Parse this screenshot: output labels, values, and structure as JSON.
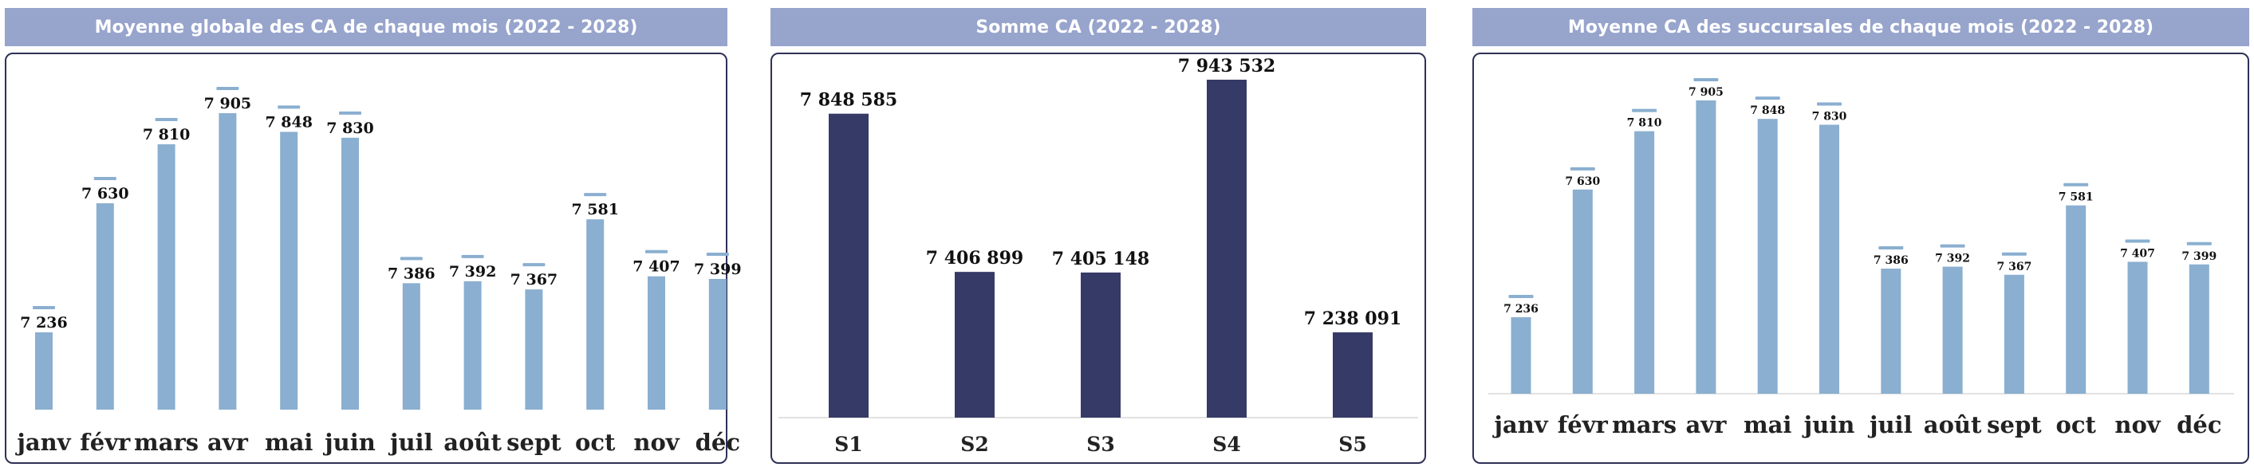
{
  "chart_data": [
    {
      "type": "bar",
      "title": "Moyenne globale des CA de chaque mois (2022 - 2028)",
      "categories": [
        "janv",
        "févr",
        "mars",
        "avr",
        "mai",
        "juin",
        "juil",
        "août",
        "sept",
        "oct",
        "nov",
        "déc"
      ],
      "values": [
        7236,
        7630,
        7810,
        7905,
        7848,
        7830,
        7386,
        7392,
        7367,
        7581,
        7407,
        7399
      ],
      "value_labels": [
        "7 236",
        "7 630",
        "7 810",
        "7 905",
        "7 848",
        "7 830",
        "7 386",
        "7 392",
        "7 367",
        "7 581",
        "7 407",
        "7 399"
      ],
      "ylim": [
        7000,
        8000
      ],
      "grid": false,
      "colors": {
        "bar": "#8aafd0",
        "cap": "#8aafd0"
      }
    },
    {
      "type": "bar",
      "title": "Somme CA (2022 - 2028)",
      "categories": [
        "S1",
        "S2",
        "S3",
        "S4",
        "S5"
      ],
      "values": [
        7848585,
        7406899,
        7405148,
        7943532,
        7238091
      ],
      "value_labels": [
        "7 848 585",
        "7 406 899",
        "7 405 148",
        "7 943 532",
        "7 238 091"
      ],
      "ylim": [
        7000000,
        8000000
      ],
      "grid": false,
      "colors": {
        "bar": "#363a66"
      }
    },
    {
      "type": "bar",
      "title": "Moyenne CA des succursales de chaque mois (2022 - 2028)",
      "categories": [
        "janv",
        "févr",
        "mars",
        "avr",
        "mai",
        "juin",
        "juil",
        "août",
        "sept",
        "oct",
        "nov",
        "déc"
      ],
      "values": [
        7236,
        7630,
        7810,
        7905,
        7848,
        7830,
        7386,
        7392,
        7367,
        7581,
        7407,
        7399
      ],
      "value_labels": [
        "7 236",
        "7 630",
        "7 810",
        "7 905",
        "7 848",
        "7 830",
        "7 386",
        "7 392",
        "7 367",
        "7 581",
        "7 407",
        "7 399"
      ],
      "ylim": [
        7000,
        8000
      ],
      "grid": false,
      "colors": {
        "bar": "#8aafd0",
        "cap": "#8aafd0"
      }
    }
  ]
}
